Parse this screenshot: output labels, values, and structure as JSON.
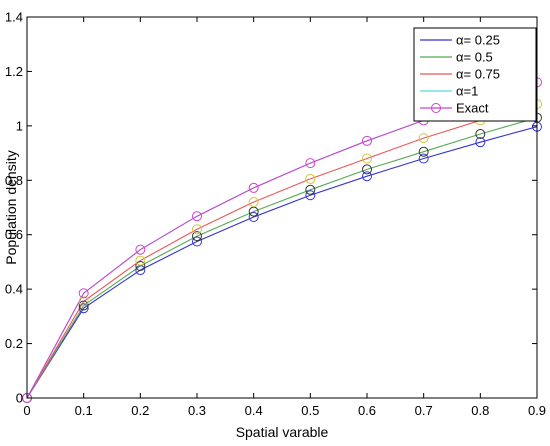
{
  "chart_data": {
    "type": "line",
    "xlabel": "Spatial varable",
    "ylabel": "Population density",
    "xlim": [
      0,
      0.9
    ],
    "ylim": [
      0,
      1.4
    ],
    "xticks": [
      "0",
      "0.1",
      "0.2",
      "0.3",
      "0.4",
      "0.5",
      "0.6",
      "0.7",
      "0.8",
      "0.9"
    ],
    "yticks": [
      "0",
      "0.2",
      "0.4",
      "0.6",
      "0.8",
      "1",
      "1.2",
      "1.4"
    ],
    "grid": false,
    "legend_position": "top-right",
    "x": [
      0,
      0.1,
      0.2,
      0.3,
      0.4,
      0.5,
      0.6,
      0.7,
      0.8,
      0.9
    ],
    "series": [
      {
        "name": "α= 0.25",
        "color": "#3333cc",
        "values": [
          0,
          0.33,
          0.47,
          0.575,
          0.665,
          0.745,
          0.815,
          0.88,
          0.94,
          0.997
        ]
      },
      {
        "name": "α= 0.5",
        "color": "#55aa55",
        "values": [
          0,
          0.34,
          0.485,
          0.595,
          0.685,
          0.765,
          0.84,
          0.905,
          0.97,
          1.03
        ]
      },
      {
        "name": "α= 0.75",
        "color": "#ee5555",
        "values": [
          0,
          0.355,
          0.505,
          0.62,
          0.72,
          0.805,
          0.88,
          0.955,
          1.02,
          1.08
        ]
      },
      {
        "name": "α=1",
        "color": "#55dddd",
        "values": [
          0,
          0.385,
          0.545,
          0.668,
          0.772,
          0.863,
          0.945,
          1.02,
          1.09,
          1.16
        ]
      },
      {
        "name": "Exact",
        "color": "#cc44cc",
        "values": [
          0,
          0.385,
          0.545,
          0.668,
          0.772,
          0.863,
          0.945,
          1.02,
          1.09,
          1.16
        ]
      }
    ],
    "marker_series": [
      {
        "color": "#3333ee",
        "values": [
          0,
          0.33,
          0.47,
          0.575,
          0.665,
          0.745,
          0.815,
          0.88,
          0.94,
          0.997
        ]
      },
      {
        "color": "#333333",
        "values": [
          0,
          0.34,
          0.485,
          0.595,
          0.685,
          0.765,
          0.84,
          0.905,
          0.97,
          1.03
        ]
      },
      {
        "color": "#c8c840",
        "values": [
          0,
          0.355,
          0.505,
          0.62,
          0.72,
          0.805,
          0.88,
          0.955,
          1.02,
          1.08
        ]
      },
      {
        "color": "#cc44cc",
        "values": [
          0,
          0.385,
          0.545,
          0.668,
          0.772,
          0.863,
          0.945,
          1.02,
          1.09,
          1.16
        ]
      }
    ]
  }
}
